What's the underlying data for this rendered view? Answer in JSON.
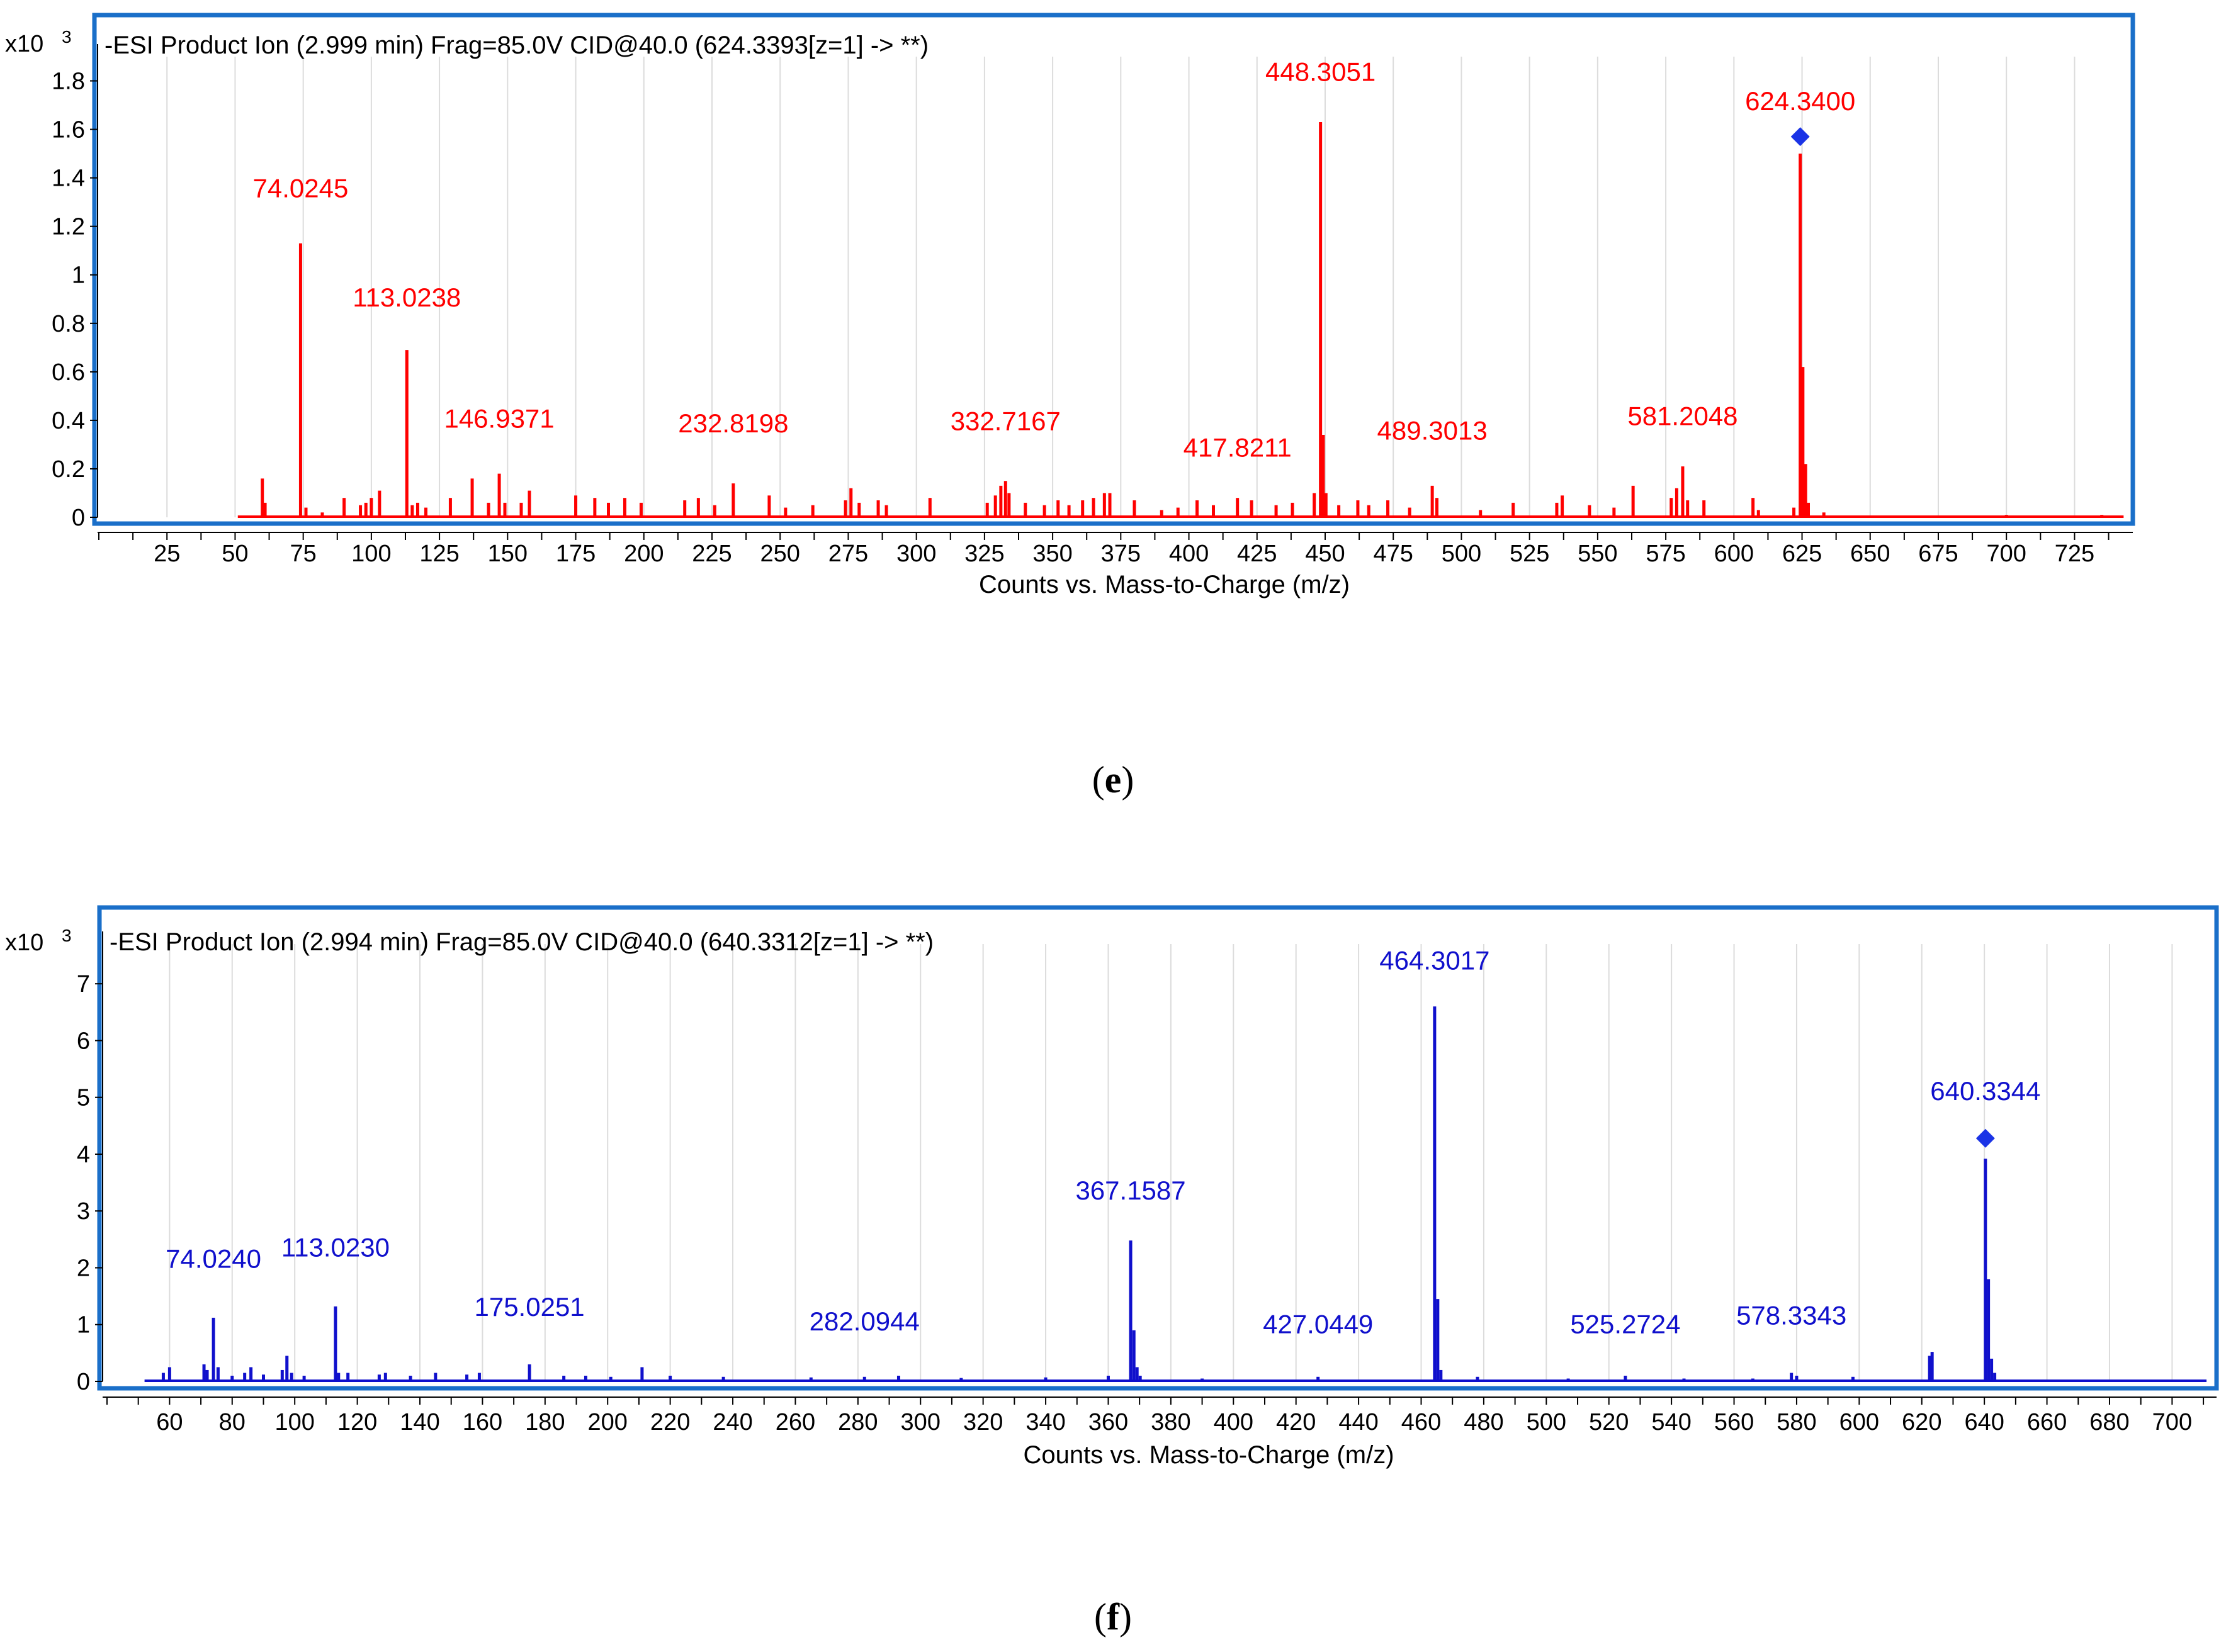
{
  "figure": {
    "caption_e": "e",
    "caption_f": "f"
  },
  "chart_data": [
    {
      "type": "bar",
      "panel": "e",
      "title": "-ESI Product Ion (2.999 min) Frag=85.0V CID@40.0 (624.3393[z=1] -> **)",
      "scale_label": "x10",
      "scale_exp": "3",
      "xlabel": "Counts vs. Mass-to-Charge (m/z)",
      "ylabel": "",
      "xlim": [
        0,
        745
      ],
      "ylim": [
        0,
        1.9
      ],
      "xticks": [
        25,
        50,
        75,
        100,
        125,
        150,
        175,
        200,
        225,
        250,
        275,
        300,
        325,
        350,
        375,
        400,
        425,
        450,
        475,
        500,
        525,
        550,
        575,
        600,
        625,
        650,
        675,
        700,
        725
      ],
      "xtick_labels": [
        "25",
        "50",
        "75",
        "100",
        "125",
        "150",
        "175",
        "200",
        "225",
        "250",
        "275",
        "300",
        "325",
        "350",
        "375",
        "400",
        "425",
        "450",
        "475",
        "500",
        "525",
        "550",
        "575",
        "600",
        "625",
        "650",
        "675",
        "700",
        "725"
      ],
      "yticks": [
        0,
        0.2,
        0.4,
        0.6,
        0.8,
        1.0,
        1.2,
        1.4,
        1.6,
        1.8
      ],
      "ytick_labels": [
        "0",
        "0.2",
        "0.4",
        "0.6",
        "0.8",
        "1",
        "1.2",
        "1.4",
        "1.6",
        "1.8"
      ],
      "color": "#ff0000",
      "frame_color": "#1a6fc9",
      "baseline_start": 51,
      "baseline_end": 743,
      "peaks": [
        {
          "mz": 60,
          "y": 0.16
        },
        {
          "mz": 61,
          "y": 0.06
        },
        {
          "mz": 74.0245,
          "y": 1.13
        },
        {
          "mz": 76,
          "y": 0.04
        },
        {
          "mz": 82,
          "y": 0.02
        },
        {
          "mz": 90,
          "y": 0.08
        },
        {
          "mz": 96,
          "y": 0.05
        },
        {
          "mz": 98,
          "y": 0.06
        },
        {
          "mz": 100,
          "y": 0.08
        },
        {
          "mz": 103,
          "y": 0.11
        },
        {
          "mz": 113.0238,
          "y": 0.69
        },
        {
          "mz": 115,
          "y": 0.05
        },
        {
          "mz": 117,
          "y": 0.06
        },
        {
          "mz": 120,
          "y": 0.04
        },
        {
          "mz": 129,
          "y": 0.08
        },
        {
          "mz": 137,
          "y": 0.16
        },
        {
          "mz": 143,
          "y": 0.06
        },
        {
          "mz": 146.9371,
          "y": 0.18
        },
        {
          "mz": 149,
          "y": 0.06
        },
        {
          "mz": 155,
          "y": 0.06
        },
        {
          "mz": 158,
          "y": 0.11
        },
        {
          "mz": 175,
          "y": 0.09
        },
        {
          "mz": 182,
          "y": 0.08
        },
        {
          "mz": 187,
          "y": 0.06
        },
        {
          "mz": 193,
          "y": 0.08
        },
        {
          "mz": 199,
          "y": 0.06
        },
        {
          "mz": 215,
          "y": 0.07
        },
        {
          "mz": 220,
          "y": 0.08
        },
        {
          "mz": 226,
          "y": 0.05
        },
        {
          "mz": 232.8198,
          "y": 0.14
        },
        {
          "mz": 246,
          "y": 0.09
        },
        {
          "mz": 252,
          "y": 0.04
        },
        {
          "mz": 262,
          "y": 0.05
        },
        {
          "mz": 274,
          "y": 0.07
        },
        {
          "mz": 276,
          "y": 0.12
        },
        {
          "mz": 279,
          "y": 0.06
        },
        {
          "mz": 286,
          "y": 0.07
        },
        {
          "mz": 289,
          "y": 0.05
        },
        {
          "mz": 305,
          "y": 0.08
        },
        {
          "mz": 326,
          "y": 0.06
        },
        {
          "mz": 329,
          "y": 0.09
        },
        {
          "mz": 331,
          "y": 0.13
        },
        {
          "mz": 332.7167,
          "y": 0.15
        },
        {
          "mz": 334,
          "y": 0.1
        },
        {
          "mz": 340,
          "y": 0.06
        },
        {
          "mz": 347,
          "y": 0.05
        },
        {
          "mz": 352,
          "y": 0.07
        },
        {
          "mz": 356,
          "y": 0.05
        },
        {
          "mz": 361,
          "y": 0.07
        },
        {
          "mz": 365,
          "y": 0.08
        },
        {
          "mz": 369,
          "y": 0.1
        },
        {
          "mz": 371,
          "y": 0.1
        },
        {
          "mz": 380,
          "y": 0.07
        },
        {
          "mz": 390,
          "y": 0.03
        },
        {
          "mz": 396,
          "y": 0.04
        },
        {
          "mz": 403,
          "y": 0.07
        },
        {
          "mz": 409,
          "y": 0.05
        },
        {
          "mz": 417.8211,
          "y": 0.08
        },
        {
          "mz": 423,
          "y": 0.07
        },
        {
          "mz": 432,
          "y": 0.05
        },
        {
          "mz": 438,
          "y": 0.06
        },
        {
          "mz": 446,
          "y": 0.1
        },
        {
          "mz": 448.3051,
          "y": 1.63
        },
        {
          "mz": 449.3,
          "y": 0.34
        },
        {
          "mz": 450.3,
          "y": 0.1
        },
        {
          "mz": 455,
          "y": 0.05
        },
        {
          "mz": 462,
          "y": 0.07
        },
        {
          "mz": 466,
          "y": 0.05
        },
        {
          "mz": 473,
          "y": 0.07
        },
        {
          "mz": 481,
          "y": 0.04
        },
        {
          "mz": 489.3013,
          "y": 0.13
        },
        {
          "mz": 491,
          "y": 0.08
        },
        {
          "mz": 507,
          "y": 0.03
        },
        {
          "mz": 519,
          "y": 0.06
        },
        {
          "mz": 535,
          "y": 0.06
        },
        {
          "mz": 537,
          "y": 0.09
        },
        {
          "mz": 547,
          "y": 0.05
        },
        {
          "mz": 556,
          "y": 0.04
        },
        {
          "mz": 563,
          "y": 0.13
        },
        {
          "mz": 577,
          "y": 0.08
        },
        {
          "mz": 579,
          "y": 0.12
        },
        {
          "mz": 581.2048,
          "y": 0.21
        },
        {
          "mz": 583,
          "y": 0.07
        },
        {
          "mz": 589,
          "y": 0.07
        },
        {
          "mz": 607,
          "y": 0.08
        },
        {
          "mz": 609,
          "y": 0.03
        },
        {
          "mz": 622,
          "y": 0.04
        },
        {
          "mz": 624.34,
          "y": 1.5
        },
        {
          "mz": 625.3,
          "y": 0.62
        },
        {
          "mz": 626.3,
          "y": 0.22
        },
        {
          "mz": 627.3,
          "y": 0.06
        },
        {
          "mz": 633,
          "y": 0.02
        },
        {
          "mz": 700,
          "y": 0.01
        },
        {
          "mz": 735,
          "y": 0.01
        }
      ],
      "annotations": [
        {
          "text": "74.0245",
          "mz": 74.0245,
          "y": 1.32
        },
        {
          "text": "113.0238",
          "mz": 113.0238,
          "y": 0.87
        },
        {
          "text": "146.9371",
          "mz": 146.9371,
          "y": 0.37
        },
        {
          "text": "232.8198",
          "mz": 232.8198,
          "y": 0.35
        },
        {
          "text": "332.7167",
          "mz": 332.7167,
          "y": 0.36
        },
        {
          "text": "417.8211",
          "mz": 417.8211,
          "y": 0.25
        },
        {
          "text": "448.3051",
          "mz": 448.3051,
          "y": 1.8
        },
        {
          "text": "489.3013",
          "mz": 489.3013,
          "y": 0.32
        },
        {
          "text": "581.2048",
          "mz": 581.2048,
          "y": 0.38
        },
        {
          "text": "624.3400",
          "mz": 624.34,
          "y": 1.68
        }
      ],
      "precursor_marker": {
        "mz": 624.34,
        "y": 1.57,
        "color": "#1a33e6"
      }
    },
    {
      "type": "bar",
      "panel": "f",
      "title": "-ESI Product Ion (2.994 min) Frag=85.0V CID@40.0 (640.3312[z=1] -> **)",
      "scale_label": "x10",
      "scale_exp": "3",
      "xlabel": "Counts vs. Mass-to-Charge (m/z)",
      "ylabel": "",
      "xlim": [
        39,
        713
      ],
      "ylim": [
        0,
        7.7
      ],
      "xticks": [
        60,
        80,
        100,
        120,
        140,
        160,
        180,
        200,
        220,
        240,
        260,
        280,
        300,
        320,
        340,
        360,
        380,
        400,
        420,
        440,
        460,
        480,
        500,
        520,
        540,
        560,
        580,
        600,
        620,
        640,
        660,
        680,
        700
      ],
      "xtick_labels": [
        "60",
        "80",
        "100",
        "120",
        "140",
        "160",
        "180",
        "200",
        "220",
        "240",
        "260",
        "280",
        "300",
        "320",
        "340",
        "360",
        "380",
        "400",
        "420",
        "440",
        "460",
        "480",
        "500",
        "520",
        "540",
        "560",
        "580",
        "600",
        "620",
        "640",
        "660",
        "680",
        "700"
      ],
      "yticks": [
        0,
        1,
        2,
        3,
        4,
        5,
        6,
        7
      ],
      "ytick_labels": [
        "0",
        "1",
        "2",
        "3",
        "4",
        "5",
        "6",
        "7"
      ],
      "color": "#1010cc",
      "frame_color": "#1a6fc9",
      "baseline_start": 52,
      "baseline_end": 711,
      "peaks": [
        {
          "mz": 58,
          "y": 0.15
        },
        {
          "mz": 60,
          "y": 0.25
        },
        {
          "mz": 71,
          "y": 0.3
        },
        {
          "mz": 72,
          "y": 0.2
        },
        {
          "mz": 74.024,
          "y": 1.12
        },
        {
          "mz": 75.5,
          "y": 0.25
        },
        {
          "mz": 80,
          "y": 0.1
        },
        {
          "mz": 84,
          "y": 0.15
        },
        {
          "mz": 86,
          "y": 0.25
        },
        {
          "mz": 90,
          "y": 0.12
        },
        {
          "mz": 96,
          "y": 0.2
        },
        {
          "mz": 97.5,
          "y": 0.45
        },
        {
          "mz": 99,
          "y": 0.15
        },
        {
          "mz": 103,
          "y": 0.1
        },
        {
          "mz": 113.023,
          "y": 1.32
        },
        {
          "mz": 114,
          "y": 0.15
        },
        {
          "mz": 117,
          "y": 0.15
        },
        {
          "mz": 127,
          "y": 0.12
        },
        {
          "mz": 129,
          "y": 0.15
        },
        {
          "mz": 137,
          "y": 0.1
        },
        {
          "mz": 145,
          "y": 0.15
        },
        {
          "mz": 155,
          "y": 0.12
        },
        {
          "mz": 159,
          "y": 0.15
        },
        {
          "mz": 175.0251,
          "y": 0.3
        },
        {
          "mz": 186,
          "y": 0.1
        },
        {
          "mz": 193,
          "y": 0.1
        },
        {
          "mz": 201,
          "y": 0.08
        },
        {
          "mz": 211,
          "y": 0.25
        },
        {
          "mz": 220,
          "y": 0.1
        },
        {
          "mz": 237,
          "y": 0.08
        },
        {
          "mz": 265,
          "y": 0.07
        },
        {
          "mz": 282.0944,
          "y": 0.08
        },
        {
          "mz": 293,
          "y": 0.1
        },
        {
          "mz": 313,
          "y": 0.06
        },
        {
          "mz": 340,
          "y": 0.07
        },
        {
          "mz": 360,
          "y": 0.1
        },
        {
          "mz": 367.1587,
          "y": 2.48
        },
        {
          "mz": 368.2,
          "y": 0.9
        },
        {
          "mz": 369.2,
          "y": 0.25
        },
        {
          "mz": 370.2,
          "y": 0.1
        },
        {
          "mz": 390,
          "y": 0.05
        },
        {
          "mz": 427.0449,
          "y": 0.08
        },
        {
          "mz": 464.3017,
          "y": 6.6
        },
        {
          "mz": 465.3,
          "y": 1.45
        },
        {
          "mz": 466.3,
          "y": 0.2
        },
        {
          "mz": 478,
          "y": 0.08
        },
        {
          "mz": 507,
          "y": 0.05
        },
        {
          "mz": 525.2724,
          "y": 0.1
        },
        {
          "mz": 544,
          "y": 0.05
        },
        {
          "mz": 566,
          "y": 0.05
        },
        {
          "mz": 578.3343,
          "y": 0.15
        },
        {
          "mz": 580,
          "y": 0.1
        },
        {
          "mz": 598,
          "y": 0.08
        },
        {
          "mz": 622.5,
          "y": 0.45
        },
        {
          "mz": 623.3,
          "y": 0.52
        },
        {
          "mz": 640.3344,
          "y": 3.92
        },
        {
          "mz": 641.3,
          "y": 1.8
        },
        {
          "mz": 642.3,
          "y": 0.4
        },
        {
          "mz": 643.3,
          "y": 0.15
        }
      ],
      "annotations": [
        {
          "text": "74.0240",
          "mz": 74.024,
          "y": 2.0
        },
        {
          "text": "113.0230",
          "mz": 113.023,
          "y": 2.2
        },
        {
          "text": "175.0251",
          "mz": 175.0251,
          "y": 1.15
        },
        {
          "text": "282.0944",
          "mz": 282.0944,
          "y": 0.9
        },
        {
          "text": "367.1587",
          "mz": 367.1587,
          "y": 3.2
        },
        {
          "text": "427.0449",
          "mz": 427.0449,
          "y": 0.85
        },
        {
          "text": "464.3017",
          "mz": 464.3017,
          "y": 7.25
        },
        {
          "text": "525.2724",
          "mz": 525.2724,
          "y": 0.85
        },
        {
          "text": "578.3343",
          "mz": 578.3343,
          "y": 1.0
        },
        {
          "text": "640.3344",
          "mz": 640.3344,
          "y": 4.95
        }
      ],
      "precursor_marker": {
        "mz": 640.3344,
        "y": 4.28,
        "color": "#1a33e6"
      }
    }
  ]
}
